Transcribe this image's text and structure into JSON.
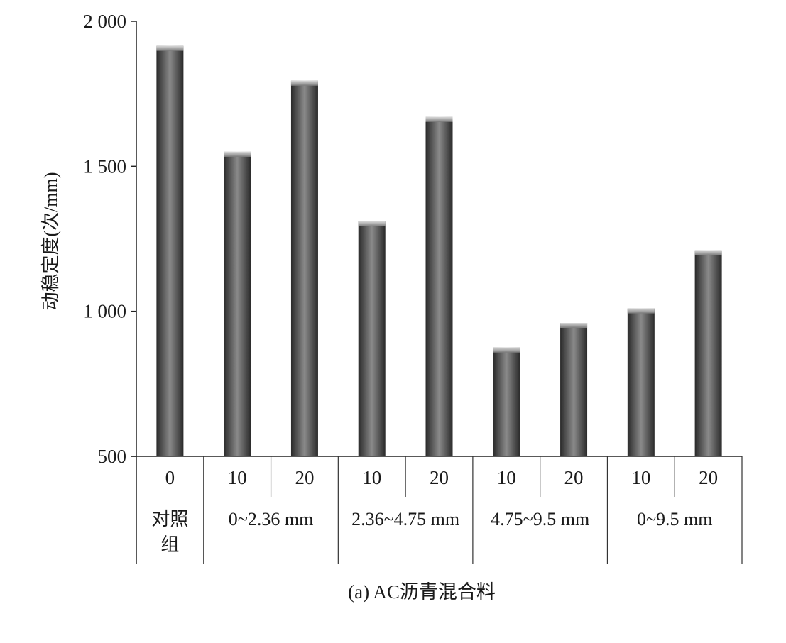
{
  "chart_data": {
    "type": "bar",
    "ylabel": "动稳定度(次/mm)",
    "ylim": [
      500,
      2000
    ],
    "yticks": [
      {
        "value": 500,
        "label": "500"
      },
      {
        "value": 1000,
        "label": "1 000"
      },
      {
        "value": 1500,
        "label": "1 500"
      },
      {
        "value": 2000,
        "label": "2 000"
      }
    ],
    "categories": [
      "0",
      "10",
      "20",
      "10",
      "20",
      "10",
      "20",
      "10",
      "20"
    ],
    "values": [
      1915,
      1550,
      1795,
      1310,
      1670,
      875,
      960,
      1010,
      1210
    ],
    "groups": [
      {
        "label_lines": [
          "对照",
          "组"
        ],
        "span": 1
      },
      {
        "label_lines": [
          "0~2.36 mm"
        ],
        "span": 2
      },
      {
        "label_lines": [
          "2.36~4.75 mm"
        ],
        "span": 2
      },
      {
        "label_lines": [
          "4.75~9.5 mm"
        ],
        "span": 2
      },
      {
        "label_lines": [
          "0~9.5 mm"
        ],
        "span": 2
      }
    ],
    "bar_color": "#6e6e6e",
    "caption": "(a) AC沥青混合料",
    "grid": false,
    "legend": "none"
  }
}
